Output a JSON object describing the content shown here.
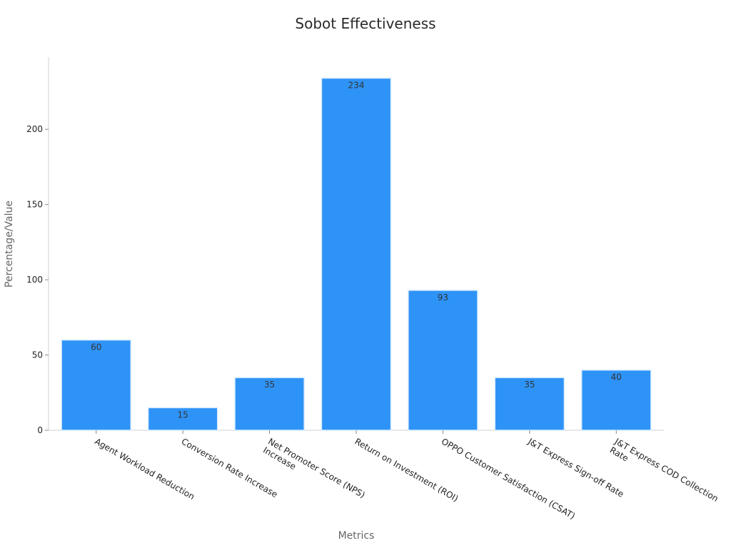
{
  "chart_data": {
    "type": "bar",
    "title": "Sobot Effectiveness",
    "xlabel": "Metrics",
    "ylabel": "Percentage/Value",
    "categories": [
      [
        "Agent Workload Reduction"
      ],
      [
        "Conversion Rate Increase"
      ],
      [
        "Net Promoter Score (NPS)",
        "Increase"
      ],
      [
        "Return on Investment (ROI)"
      ],
      [
        "OPPO Customer Satisfaction (CSAT)"
      ],
      [
        "J&T Express Sign-off Rate"
      ],
      [
        "J&T Express COD Collection",
        "Rate"
      ]
    ],
    "values": [
      60,
      15,
      35,
      234,
      93,
      35,
      40
    ],
    "data_labels": [
      "60",
      "15",
      "35",
      "234",
      "93",
      "35",
      "40"
    ],
    "ylim": [
      0,
      248
    ],
    "yticks": [
      0,
      50,
      100,
      150,
      200
    ],
    "grid": false,
    "bar_color": "#2e93f7"
  }
}
